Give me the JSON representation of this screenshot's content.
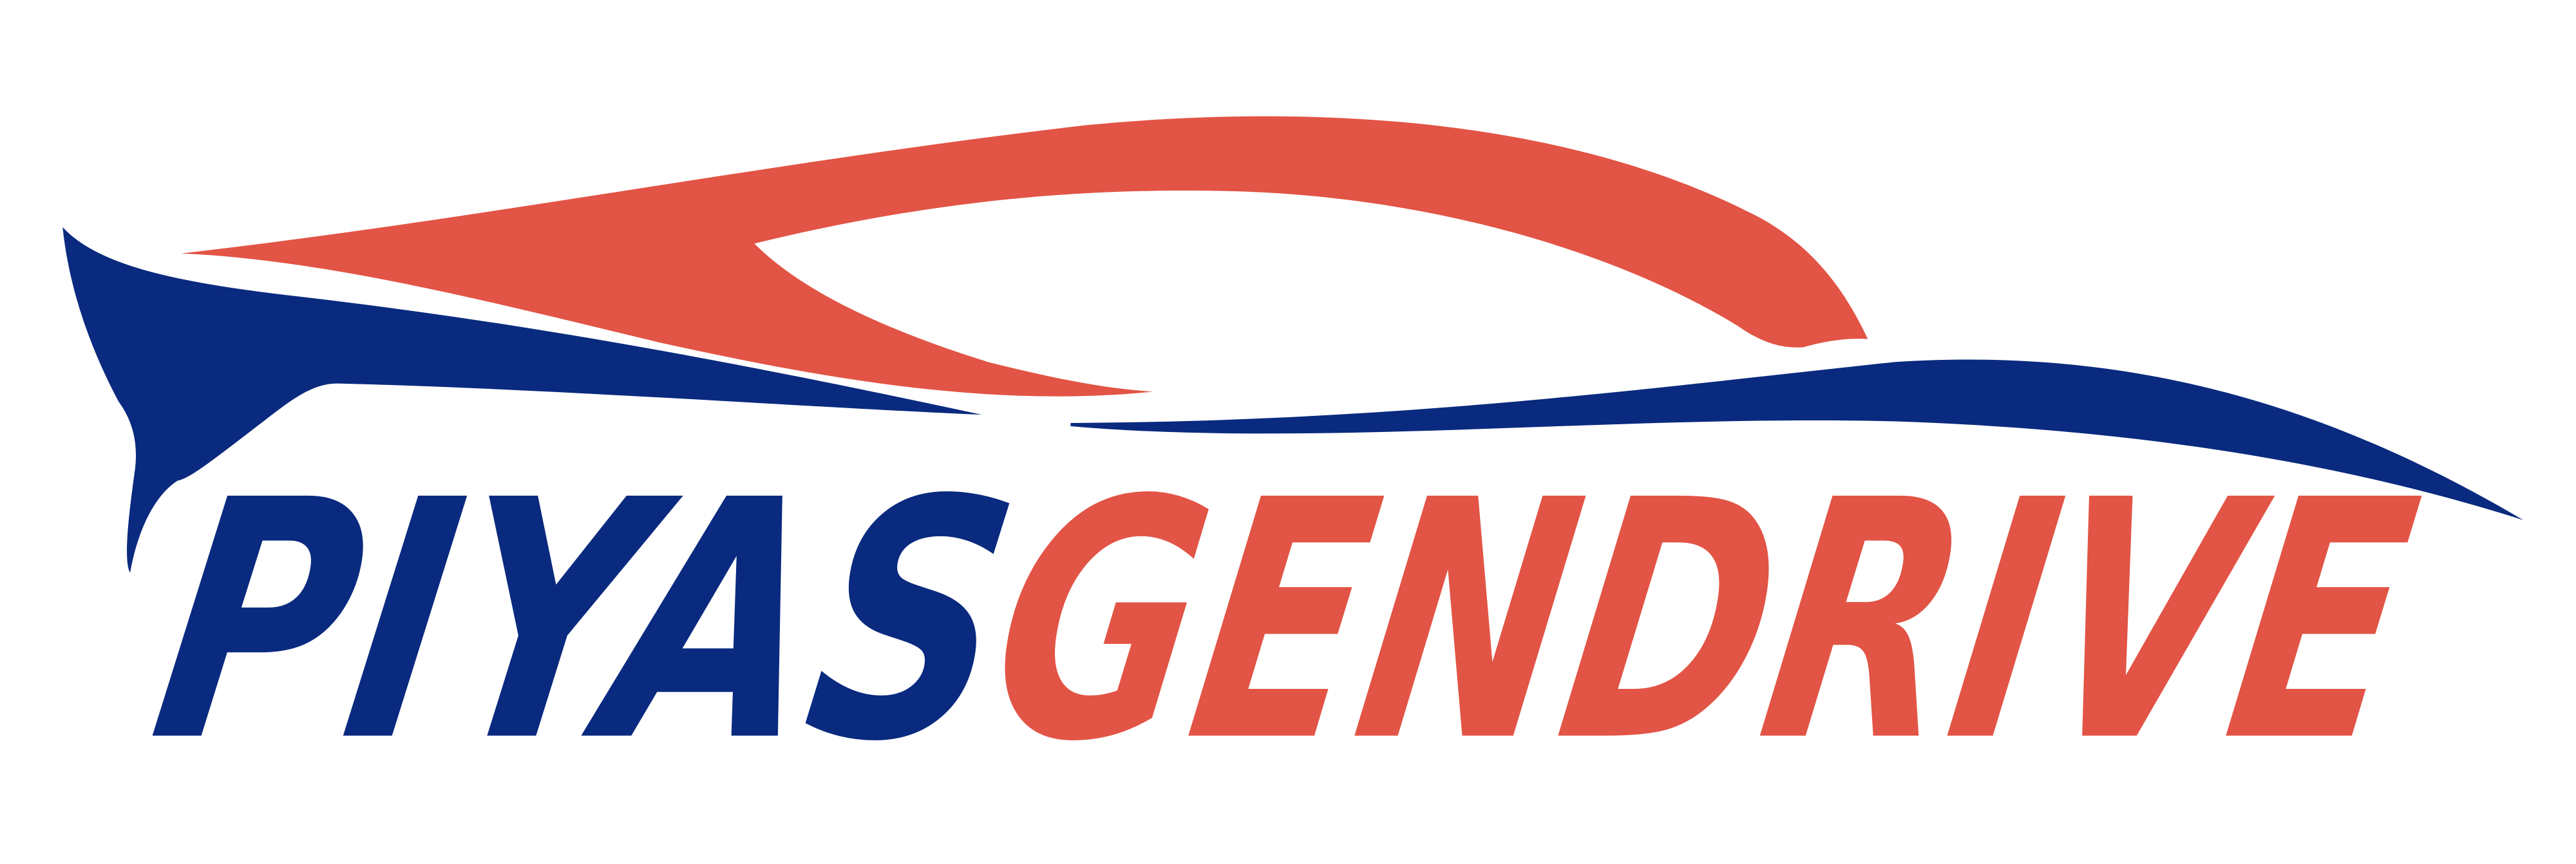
{
  "logo": {
    "wordmark_part1": "PIYAS",
    "wordmark_part2": "GENDRIVE",
    "colors": {
      "navy": "#0a2a7f",
      "coral": "#e25445",
      "background": "#ffffff"
    },
    "icons": [
      "car-silhouette-swoosh"
    ]
  }
}
